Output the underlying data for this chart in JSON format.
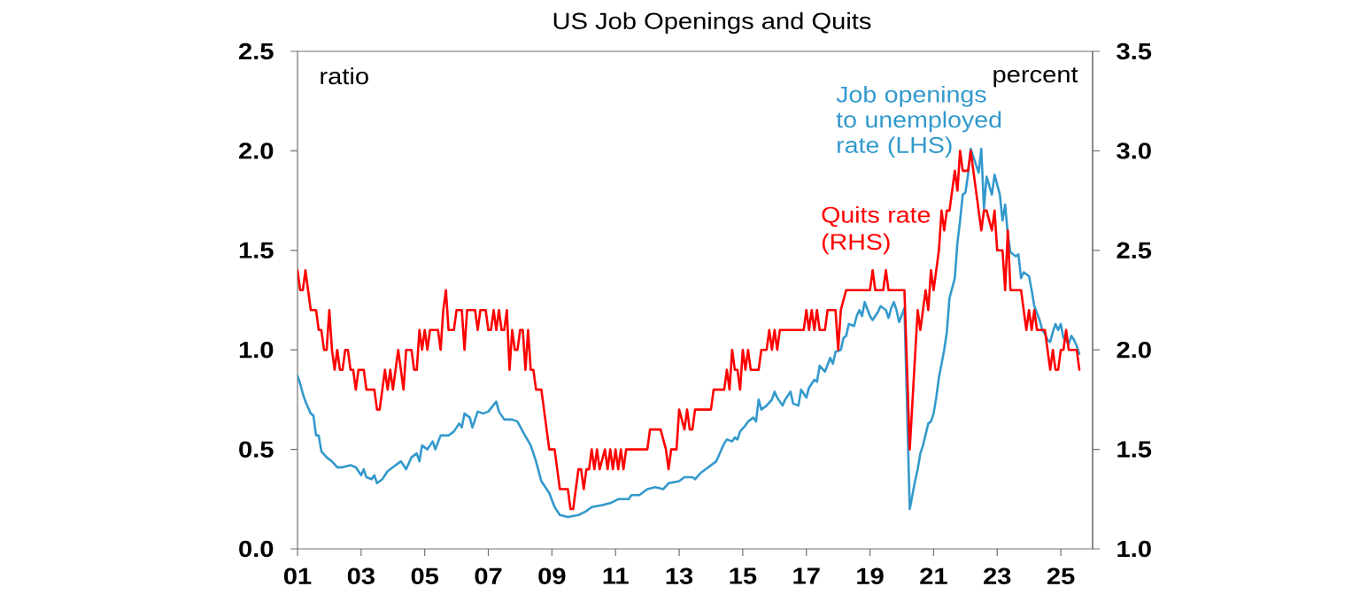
{
  "chart_data": {
    "type": "line",
    "title": "US Job Openings and Quits",
    "ylabel": "ratio",
    "y2label": "percent",
    "xlim": [
      "2001-01",
      "2026-01"
    ],
    "xticks": [
      {
        "value": "2001-01",
        "label": "01"
      },
      {
        "value": "2003-01",
        "label": "03"
      },
      {
        "value": "2005-01",
        "label": "05"
      },
      {
        "value": "2007-01",
        "label": "07"
      },
      {
        "value": "2009-01",
        "label": "09"
      },
      {
        "value": "2011-01",
        "label": "11"
      },
      {
        "value": "2013-01",
        "label": "13"
      },
      {
        "value": "2015-01",
        "label": "15"
      },
      {
        "value": "2017-01",
        "label": "17"
      },
      {
        "value": "2019-01",
        "label": "19"
      },
      {
        "value": "2021-01",
        "label": "21"
      },
      {
        "value": "2023-01",
        "label": "23"
      },
      {
        "value": "2025-01",
        "label": "25"
      }
    ],
    "ylim": [
      0,
      2.5
    ],
    "yticks": [
      {
        "value": 0,
        "label": "0.0"
      },
      0.5,
      {
        "value": 1,
        "label": "1.0"
      },
      1.5,
      {
        "value": 2,
        "label": "2.0"
      },
      2.5
    ],
    "y2lim": [
      1,
      3.5
    ],
    "y2ticks": [
      {
        "value": 1,
        "label": "1.0"
      },
      1.5,
      {
        "value": 2,
        "label": "2.0"
      },
      2.5,
      {
        "value": 3,
        "label": "3.0"
      },
      3.5
    ],
    "series": [
      {
        "name": "Job openings to unemployed rate (LHS)",
        "color": "#3399cc",
        "x": [
          "2001-01",
          "2001-02",
          "2001-03",
          "2001-04",
          "2001-05",
          "2001-06",
          "2001-07",
          "2001-08",
          "2001-09",
          "2001-10",
          "2001-12",
          "2002-01",
          "2002-02",
          "2002-04",
          "2002-06",
          "2002-09",
          "2002-11",
          "2003-01",
          "2003-02",
          "2003-03",
          "2003-05",
          "2003-06",
          "2003-07",
          "2003-09",
          "2003-11",
          "2004-01",
          "2004-04",
          "2004-06",
          "2004-08",
          "2004-10",
          "2004-11",
          "2004-12",
          "2005-02",
          "2005-04",
          "2005-05",
          "2005-07",
          "2005-10",
          "2005-12",
          "2006-02",
          "2006-03",
          "2006-04",
          "2006-06",
          "2006-07",
          "2006-09",
          "2006-11",
          "2007-01",
          "2007-04",
          "2007-05",
          "2007-07",
          "2007-10",
          "2007-12",
          "2008-02",
          "2008-05",
          "2008-07",
          "2008-09",
          "2008-12",
          "2009-02",
          "2009-04",
          "2009-07",
          "2009-11",
          "2010-02",
          "2010-04",
          "2010-08",
          "2010-11",
          "2011-02",
          "2011-06",
          "2011-07",
          "2011-10",
          "2012-01",
          "2012-04",
          "2012-07",
          "2012-09",
          "2013-01",
          "2013-03",
          "2013-06",
          "2013-07",
          "2013-09",
          "2013-12",
          "2014-03",
          "2014-05",
          "2014-06",
          "2014-07",
          "2014-09",
          "2014-10",
          "2014-11",
          "2014-12",
          "2015-02",
          "2015-03",
          "2015-05",
          "2015-06",
          "2015-07",
          "2015-08",
          "2015-10",
          "2015-12",
          "2016-01",
          "2016-02",
          "2016-04",
          "2016-05",
          "2016-07",
          "2016-08",
          "2016-10",
          "2016-11",
          "2017-01",
          "2017-02",
          "2017-04",
          "2017-05",
          "2017-06",
          "2017-08",
          "2017-10",
          "2017-11",
          "2017-12",
          "2018-02",
          "2018-03",
          "2018-04",
          "2018-05",
          "2018-07",
          "2018-08",
          "2018-09",
          "2018-10",
          "2018-11",
          "2019-01",
          "2019-02",
          "2019-04",
          "2019-05",
          "2019-07",
          "2019-08",
          "2019-09",
          "2019-10",
          "2019-11",
          "2019-12",
          "2020-02",
          "2020-04",
          "2020-06",
          "2020-07",
          "2020-08",
          "2020-09",
          "2020-11",
          "2020-12",
          "2021-01",
          "2021-02",
          "2021-03",
          "2021-05",
          "2021-06",
          "2021-07",
          "2021-09",
          "2021-10",
          "2021-11",
          "2021-12",
          "2022-01",
          "2022-02",
          "2022-03",
          "2022-05",
          "2022-06",
          "2022-07",
          "2022-08",
          "2022-09",
          "2022-11",
          "2022-12",
          "2023-02",
          "2023-03",
          "2023-04",
          "2023-05",
          "2023-06",
          "2023-08",
          "2023-09",
          "2023-10",
          "2023-11",
          "2024-01",
          "2024-02",
          "2024-03",
          "2024-05",
          "2024-06",
          "2024-07",
          "2024-08",
          "2024-09",
          "2024-10",
          "2024-11",
          "2024-12",
          "2025-01",
          "2025-02",
          "2025-04",
          "2025-05",
          "2025-06",
          "2025-07",
          "2025-08"
        ],
        "values": [
          0.87,
          0.83,
          0.78,
          0.74,
          0.71,
          0.68,
          0.67,
          0.57,
          0.57,
          0.49,
          0.46,
          0.45,
          0.44,
          0.41,
          0.41,
          0.42,
          0.41,
          0.37,
          0.4,
          0.36,
          0.35,
          0.37,
          0.33,
          0.35,
          0.39,
          0.41,
          0.44,
          0.4,
          0.46,
          0.48,
          0.44,
          0.52,
          0.5,
          0.54,
          0.5,
          0.57,
          0.57,
          0.59,
          0.63,
          0.61,
          0.68,
          0.66,
          0.61,
          0.69,
          0.68,
          0.69,
          0.74,
          0.69,
          0.65,
          0.65,
          0.64,
          0.59,
          0.52,
          0.44,
          0.34,
          0.28,
          0.21,
          0.17,
          0.16,
          0.17,
          0.19,
          0.21,
          0.22,
          0.23,
          0.25,
          0.25,
          0.27,
          0.27,
          0.3,
          0.31,
          0.3,
          0.33,
          0.34,
          0.36,
          0.36,
          0.35,
          0.38,
          0.41,
          0.44,
          0.5,
          0.53,
          0.55,
          0.54,
          0.56,
          0.55,
          0.59,
          0.62,
          0.64,
          0.66,
          0.64,
          0.75,
          0.7,
          0.72,
          0.75,
          0.79,
          0.76,
          0.72,
          0.75,
          0.79,
          0.73,
          0.72,
          0.8,
          0.76,
          0.81,
          0.85,
          0.84,
          0.92,
          0.89,
          0.96,
          0.93,
          0.99,
          1.0,
          1.06,
          1.07,
          1.13,
          1.12,
          1.17,
          1.2,
          1.17,
          1.24,
          1.17,
          1.15,
          1.19,
          1.22,
          1.2,
          1.16,
          1.21,
          1.24,
          1.2,
          1.14,
          1.21,
          0.2,
          0.34,
          0.4,
          0.48,
          0.52,
          0.63,
          0.64,
          0.68,
          0.76,
          0.86,
          1.0,
          1.09,
          1.26,
          1.36,
          1.54,
          1.65,
          1.78,
          1.79,
          1.88,
          2.01,
          1.93,
          1.89,
          2.01,
          1.71,
          1.87,
          1.78,
          1.88,
          1.78,
          1.65,
          1.73,
          1.58,
          1.49,
          1.47,
          1.48,
          1.36,
          1.39,
          1.37,
          1.3,
          1.22,
          1.15,
          1.1,
          1.08,
          1.05,
          1.04,
          1.09,
          1.13,
          1.1,
          1.13,
          1.06,
          1.03,
          1.07,
          1.05,
          1.02,
          0.98
        ]
      },
      {
        "name": "Quits rate (RHS)",
        "color": "#ff0000",
        "axis": "y2",
        "x": [
          "2001-01",
          "2001-02",
          "2001-03",
          "2001-04",
          "2001-05",
          "2001-06",
          "2001-08",
          "2001-09",
          "2001-10",
          "2001-11",
          "2001-12",
          "2002-01",
          "2002-02",
          "2002-03",
          "2002-04",
          "2002-05",
          "2002-06",
          "2002-07",
          "2002-08",
          "2002-09",
          "2002-10",
          "2002-11",
          "2002-12",
          "2003-02",
          "2003-03",
          "2003-06",
          "2003-07",
          "2003-08",
          "2003-09",
          "2003-10",
          "2003-11",
          "2003-12",
          "2004-01",
          "2004-02",
          "2004-03",
          "2004-04",
          "2004-05",
          "2004-06",
          "2004-08",
          "2004-09",
          "2004-10",
          "2004-11",
          "2004-12",
          "2005-01",
          "2005-02",
          "2005-03",
          "2005-06",
          "2005-07",
          "2005-08",
          "2005-09",
          "2005-10",
          "2005-12",
          "2006-01",
          "2006-03",
          "2006-04",
          "2006-05",
          "2006-08",
          "2006-09",
          "2006-10",
          "2006-12",
          "2007-01",
          "2007-02",
          "2007-03",
          "2007-04",
          "2007-05",
          "2007-06",
          "2007-07",
          "2007-08",
          "2007-09",
          "2007-10",
          "2007-11",
          "2007-12",
          "2008-01",
          "2008-02",
          "2008-03",
          "2008-04",
          "2008-05",
          "2008-06",
          "2008-07",
          "2008-09",
          "2008-12",
          "2009-02",
          "2009-04",
          "2009-07",
          "2009-08",
          "2009-09",
          "2009-11",
          "2009-12",
          "2010-01",
          "2010-02",
          "2010-03",
          "2010-04",
          "2010-05",
          "2010-06",
          "2010-07",
          "2010-09",
          "2010-10",
          "2010-11",
          "2010-12",
          "2011-01",
          "2011-02",
          "2011-03",
          "2011-04",
          "2011-05",
          "2012-01",
          "2012-02",
          "2012-06",
          "2012-08",
          "2012-09",
          "2012-10",
          "2012-12",
          "2013-01",
          "2013-03",
          "2013-04",
          "2013-05",
          "2013-06",
          "2013-07",
          "2014-01",
          "2014-02",
          "2014-06",
          "2014-07",
          "2014-08",
          "2014-09",
          "2014-10",
          "2014-11",
          "2014-12",
          "2015-01",
          "2015-02",
          "2015-03",
          "2015-04",
          "2015-07",
          "2015-08",
          "2015-10",
          "2015-11",
          "2015-12",
          "2016-01",
          "2016-02",
          "2016-03",
          "2016-12",
          "2017-01",
          "2017-02",
          "2017-03",
          "2017-04",
          "2017-05",
          "2017-06",
          "2017-08",
          "2017-09",
          "2017-12",
          "2018-01",
          "2018-02",
          "2018-04",
          "2019-01",
          "2019-02",
          "2019-03",
          "2019-06",
          "2019-07",
          "2019-08",
          "2020-02",
          "2020-04",
          "2020-07",
          "2020-08",
          "2020-10",
          "2020-11",
          "2020-12",
          "2021-01",
          "2021-03",
          "2021-04",
          "2021-05",
          "2021-06",
          "2021-07",
          "2021-09",
          "2021-10",
          "2021-11",
          "2021-12",
          "2022-02",
          "2022-03",
          "2022-05",
          "2022-07",
          "2022-08",
          "2022-09",
          "2022-11",
          "2022-12",
          "2023-01",
          "2023-03",
          "2023-04",
          "2023-05",
          "2023-06",
          "2023-10",
          "2023-11",
          "2023-12",
          "2024-01",
          "2024-02",
          "2024-03",
          "2024-04",
          "2024-07",
          "2024-08",
          "2024-09",
          "2024-10",
          "2024-11",
          "2024-12",
          "2025-01",
          "2025-02",
          "2025-03",
          "2025-04",
          "2025-07",
          "2025-08"
        ],
        "values": [
          2.4,
          2.3,
          2.3,
          2.4,
          2.3,
          2.2,
          2.2,
          2.1,
          2.1,
          2.0,
          2.0,
          2.2,
          2.0,
          1.9,
          2.0,
          1.9,
          1.9,
          2.0,
          2.0,
          1.9,
          1.9,
          1.8,
          1.9,
          1.9,
          1.8,
          1.8,
          1.7,
          1.7,
          1.8,
          1.9,
          1.8,
          1.9,
          1.8,
          1.9,
          2.0,
          1.9,
          1.8,
          2.0,
          2.0,
          1.9,
          1.9,
          2.1,
          2.0,
          2.1,
          2.0,
          2.1,
          2.1,
          2.0,
          2.2,
          2.3,
          2.1,
          2.1,
          2.2,
          2.2,
          2.0,
          2.2,
          2.2,
          2.1,
          2.2,
          2.2,
          2.1,
          2.1,
          2.2,
          2.1,
          2.2,
          2.1,
          2.1,
          2.2,
          1.9,
          2.1,
          2.0,
          2.0,
          2.1,
          2.1,
          1.9,
          2.1,
          1.9,
          1.9,
          1.8,
          1.8,
          1.5,
          1.5,
          1.3,
          1.3,
          1.2,
          1.2,
          1.4,
          1.4,
          1.3,
          1.4,
          1.4,
          1.5,
          1.4,
          1.5,
          1.4,
          1.5,
          1.4,
          1.5,
          1.4,
          1.5,
          1.4,
          1.5,
          1.4,
          1.5,
          1.5,
          1.6,
          1.6,
          1.5,
          1.4,
          1.5,
          1.5,
          1.7,
          1.6,
          1.7,
          1.6,
          1.6,
          1.7,
          1.7,
          1.8,
          1.8,
          1.9,
          1.8,
          2.0,
          1.9,
          1.9,
          1.8,
          2.0,
          1.9,
          2.0,
          1.9,
          1.9,
          2.0,
          2.0,
          2.1,
          2.0,
          2.1,
          2.0,
          2.1,
          2.1,
          2.2,
          2.1,
          2.2,
          2.1,
          2.2,
          2.1,
          2.1,
          2.2,
          2.2,
          2.0,
          2.2,
          2.3,
          2.3,
          2.4,
          2.3,
          2.3,
          2.4,
          2.3,
          2.3,
          1.5,
          2.2,
          2.1,
          2.3,
          2.2,
          2.4,
          2.3,
          2.5,
          2.7,
          2.6,
          2.7,
          2.7,
          2.9,
          2.8,
          3.0,
          2.9,
          2.9,
          3.0,
          2.8,
          2.6,
          2.7,
          2.7,
          2.6,
          2.7,
          2.5,
          2.5,
          2.3,
          2.6,
          2.3,
          2.3,
          2.2,
          2.1,
          2.2,
          2.1,
          2.2,
          2.1,
          2.1,
          2.0,
          1.9,
          2.0,
          1.9,
          1.9,
          2.0,
          2.0,
          2.1,
          2.0,
          2.0,
          1.9
        ]
      }
    ]
  }
}
